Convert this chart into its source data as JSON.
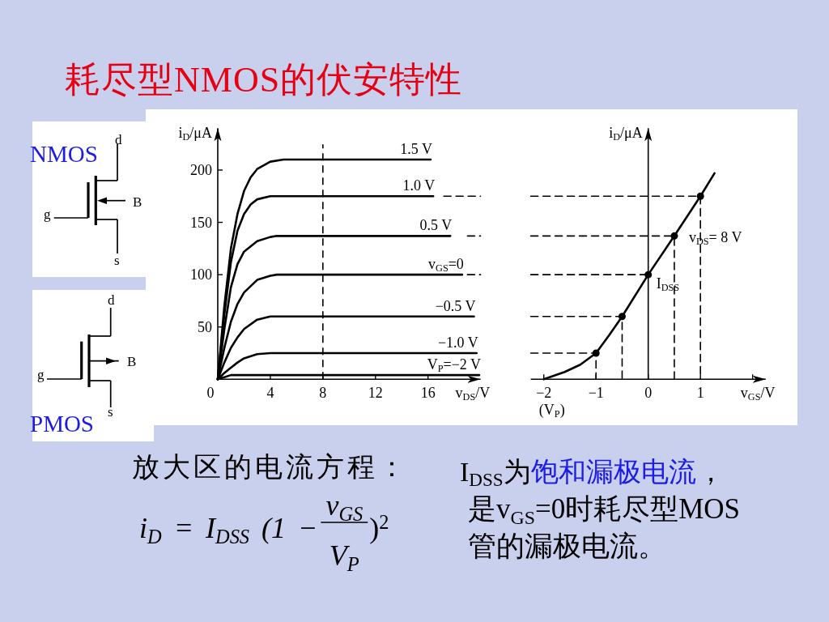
{
  "chart_data": [
    {
      "type": "line",
      "title": "耗尽型NMOS的伏安特性",
      "xlabel": "v$_{DS}$/V",
      "ylabel": "i$_{D}$/μA",
      "xlim": [
        0,
        20
      ],
      "ylim": [
        0,
        240
      ],
      "xticks": [
        0,
        4,
        8,
        12,
        16
      ],
      "yticks": [
        50,
        100,
        150,
        200
      ],
      "ref_lines": [
        {
          "axis": "x",
          "value": 8,
          "color": "#000000",
          "line_style": "dashed"
        }
      ],
      "series": [
        {
          "name": "1.5 V",
          "color": "#000000",
          "x": [
            0,
            0.5,
            1,
            1.5,
            2,
            2.5,
            3,
            4,
            5,
            16.2
          ],
          "values": [
            0,
            70,
            125,
            158,
            180,
            193,
            201,
            208,
            210,
            210
          ]
        },
        {
          "name": "1.0 V",
          "color": "#000000",
          "x": [
            0,
            0.5,
            1,
            1.5,
            2,
            2.5,
            3,
            4,
            16.4
          ],
          "values": [
            0,
            62,
            112,
            142,
            158,
            167,
            172,
            175,
            175
          ]
        },
        {
          "name": "0.5 V",
          "color": "#000000",
          "x": [
            0,
            0.5,
            1,
            1.5,
            2,
            3,
            4,
            4.5,
            17.7
          ],
          "values": [
            0,
            48,
            88,
            110,
            122,
            132,
            136,
            137,
            137
          ]
        },
        {
          "name": "v$_{GS}$=0",
          "color": "#000000",
          "x": [
            0,
            0.5,
            1,
            1.5,
            2,
            3,
            4,
            4.5,
            18.6
          ],
          "values": [
            0,
            30,
            55,
            72,
            83,
            95,
            99,
            100,
            100
          ]
        },
        {
          "name": "−0.5 V",
          "color": "#000000",
          "x": [
            0,
            0.5,
            1,
            1.5,
            2,
            3,
            4,
            19.5
          ],
          "values": [
            0,
            16,
            30,
            40,
            48,
            57,
            60,
            60
          ]
        },
        {
          "name": "−1.0 V",
          "color": "#000000",
          "x": [
            0,
            0.5,
            1,
            1.5,
            2,
            3,
            4,
            19.7
          ],
          "values": [
            0,
            6,
            11,
            16,
            20,
            24,
            25,
            25
          ]
        },
        {
          "name": "V$_{P}$=−2 V",
          "color": "#000000",
          "x": [
            0,
            0.5,
            1,
            19.9
          ],
          "values": [
            0,
            2,
            4,
            4
          ]
        },
        {
          "color": "#000000",
          "line_style": "dashed",
          "x": [
            17.2,
            20
          ],
          "values": [
            175,
            175
          ]
        },
        {
          "color": "#000000",
          "line_style": "dashed",
          "x": [
            19,
            20
          ],
          "values": [
            137,
            137
          ]
        },
        {
          "color": "#000000",
          "line_style": "dashed",
          "x": [
            19,
            20
          ],
          "values": [
            100,
            100
          ]
        }
      ]
    },
    {
      "type": "line",
      "xlabel": "v$_{GS}$/V",
      "ylabel": "i$_{D}$/μA",
      "xlim": [
        -2.25,
        2.25
      ],
      "ylim": [
        0,
        240
      ],
      "xticks": [
        {
          "value": -2,
          "label": "−2"
        },
        {
          "value": -1,
          "label": "−1"
        },
        0,
        1,
        {
          "value": 2,
          "label": null
        }
      ],
      "tick_labels": "x",
      "series": [
        {
          "name": "v$_{DS}$= 8 V",
          "color": "#000000",
          "x": [
            -2,
            -1.6,
            -1.3,
            -1,
            -0.75,
            -0.5,
            0,
            0.5,
            1,
            1.27
          ],
          "values": [
            0,
            7,
            14,
            25,
            42,
            60,
            100,
            137,
            175,
            197
          ]
        },
        {
          "type": "scatter",
          "color": "#000000",
          "marker": "circle",
          "x": [
            -1,
            -0.5,
            0,
            0.5,
            1
          ],
          "values": [
            25,
            60,
            100,
            137,
            175
          ]
        },
        {
          "color": "#000000",
          "line_style": "dashed",
          "x": [
            -2.25,
            1,
            1
          ],
          "values": [
            175,
            175,
            0
          ]
        },
        {
          "color": "#000000",
          "line_style": "dashed",
          "x": [
            -2.25,
            0.5,
            0.5
          ],
          "values": [
            137,
            137,
            0
          ]
        },
        {
          "color": "#000000",
          "line_style": "dashed",
          "x": [
            -2.25,
            0
          ],
          "values": [
            100,
            100
          ]
        },
        {
          "color": "#000000",
          "line_style": "dashed",
          "x": [
            -2.25,
            -0.5,
            -0.5
          ],
          "values": [
            60,
            60,
            0
          ]
        },
        {
          "color": "#000000",
          "line_style": "dashed",
          "x": [
            -2.25,
            -1,
            -1
          ],
          "values": [
            25,
            25,
            0
          ]
        }
      ],
      "annotations": [
        {
          "text": "I$_{DSS}$",
          "x": 0,
          "y": 100
        },
        {
          "text": "(V$_{P}$)",
          "x": -2,
          "y": 0
        }
      ]
    },
    {
      "type": "other",
      "title": "NMOS",
      "annotations": [
        "d",
        "B",
        "g",
        "s"
      ]
    },
    {
      "type": "other",
      "title": "PMOS",
      "annotations": [
        "d",
        "B",
        "g",
        "s"
      ]
    },
    {
      "type": "other",
      "annotations": [
        "放大区的电流方程：",
        "i$_{D}$ = I$_{DSS}$ (1 −",
        "v$_{GS}$",
        "V$_{P}$",
        ")$^{2}$",
        "I$_{DSS}$为",
        "饱和漏极电流",
        "，",
        "是v$_{GS}$=0时耗尽型MOS",
        "管的漏极电流。"
      ]
    }
  ]
}
